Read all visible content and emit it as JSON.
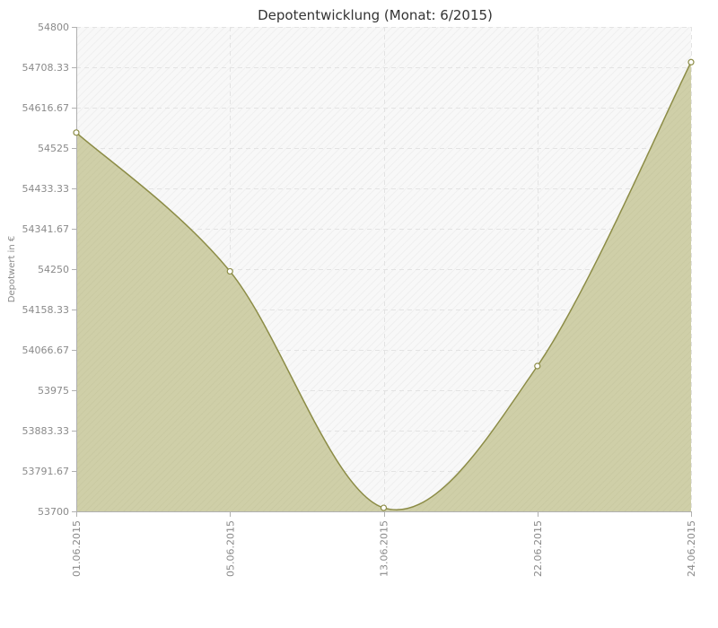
{
  "chart_data": {
    "type": "area",
    "title": "Depotentwicklung (Monat: 6/2015)",
    "xlabel": "",
    "ylabel": "Depotwert in €",
    "x": [
      "01.06.2015",
      "05.06.2015",
      "13.06.2015",
      "22.06.2015",
      "24.06.2015"
    ],
    "values": [
      54560,
      54245,
      53708,
      54030,
      54720
    ],
    "ylim": [
      53700,
      54800
    ],
    "y_ticks": [
      "53700",
      "53791.67",
      "53883.33",
      "53975",
      "54066.67",
      "54158.33",
      "54250",
      "54341.67",
      "54433.33",
      "54525",
      "54616.67",
      "54708.33",
      "54800"
    ],
    "grid": true,
    "colors": {
      "fill": "#cfcfa8",
      "line": "#8c8c46",
      "marker_fill": "#ffffff",
      "marker_stroke": "#8c8c46",
      "grid": "#e3e3e3",
      "axis": "#b0b0b0",
      "plot_background": "#f7f7f7"
    }
  }
}
